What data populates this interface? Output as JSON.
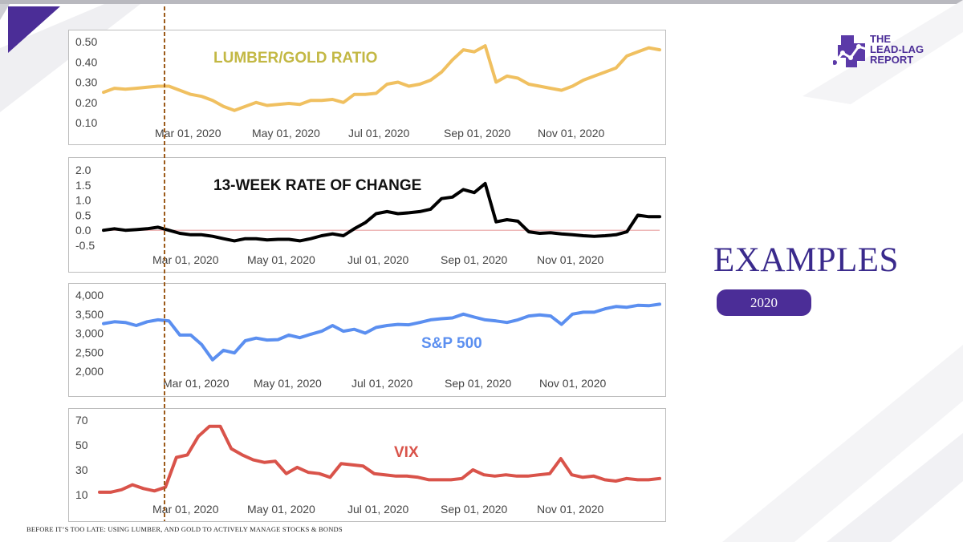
{
  "slide": {
    "heading": "EXAMPLES",
    "year_badge": "2020",
    "footer": "BEFORE IT’S TOO LATE: USING LUMBER, AND GOLD TO ACTIVELY MANAGE STOCKS & BONDS",
    "logo": {
      "line1": "THE",
      "line2": "LEAD-LAG",
      "line3": "REPORT"
    },
    "colors": {
      "accent": "#4b2d97",
      "lumber": "#f0c060",
      "roc": "#000000",
      "spx": "#5b8ff0",
      "vix": "#d9534a",
      "marker": "#9c5a1a"
    }
  },
  "chart_data": [
    {
      "type": "line",
      "title": "LUMBER/GOLD RATIO",
      "title_color": "#c3b844",
      "x_labels": [
        "Mar 01, 2020",
        "May 01, 2020",
        "Jul 01, 2020",
        "Sep 01, 2020",
        "Nov 01, 2020"
      ],
      "y_ticks": [
        "0.50",
        "0.40",
        "0.30",
        "0.20",
        "0.10"
      ],
      "ylim": [
        0.1,
        0.5
      ],
      "series": [
        {
          "color": "#f0c060",
          "values": [
            0.25,
            0.27,
            0.265,
            0.27,
            0.275,
            0.28,
            0.28,
            0.26,
            0.24,
            0.23,
            0.21,
            0.18,
            0.16,
            0.18,
            0.2,
            0.185,
            0.19,
            0.195,
            0.19,
            0.21,
            0.21,
            0.215,
            0.2,
            0.24,
            0.24,
            0.245,
            0.29,
            0.3,
            0.28,
            0.29,
            0.31,
            0.35,
            0.41,
            0.46,
            0.45,
            0.48,
            0.3,
            0.33,
            0.32,
            0.29,
            0.28,
            0.27,
            0.26,
            0.28,
            0.31,
            0.33,
            0.35,
            0.37,
            0.43,
            0.45,
            0.47,
            0.46
          ]
        }
      ]
    },
    {
      "type": "line",
      "title": "13-WEEK RATE OF CHANGE",
      "title_color": "#111111",
      "x_labels": [
        "Mar 01, 2020",
        "May 01, 2020",
        "Jul 01, 2020",
        "Sep 01, 2020",
        "Nov 01, 2020"
      ],
      "y_ticks": [
        "2.0",
        "1.5",
        "1.0",
        "0.5",
        "0.0",
        "-0.5"
      ],
      "ylim": [
        -0.5,
        2.0
      ],
      "zero_line": true,
      "series": [
        {
          "color": "#000000",
          "values": [
            0.0,
            0.05,
            0.0,
            0.02,
            0.05,
            0.1,
            0.0,
            -0.1,
            -0.15,
            -0.15,
            -0.2,
            -0.28,
            -0.35,
            -0.28,
            -0.28,
            -0.32,
            -0.3,
            -0.3,
            -0.35,
            -0.28,
            -0.18,
            -0.12,
            -0.18,
            0.05,
            0.25,
            0.55,
            0.62,
            0.55,
            0.58,
            0.62,
            0.7,
            1.05,
            1.1,
            1.35,
            1.25,
            1.55,
            0.28,
            0.35,
            0.3,
            -0.05,
            -0.1,
            -0.08,
            -0.12,
            -0.15,
            -0.18,
            -0.2,
            -0.18,
            -0.15,
            -0.05,
            0.5,
            0.45,
            0.45
          ]
        }
      ]
    },
    {
      "type": "line",
      "title": "S&P 500",
      "title_color": "#5b8ff0",
      "x_labels": [
        "Mar 01, 2020",
        "May 01, 2020",
        "Jul 01, 2020",
        "Sep 01, 2020",
        "Nov 01, 2020"
      ],
      "y_ticks": [
        "4,000",
        "3,500",
        "3,000",
        "2,500",
        "2,000"
      ],
      "ylim": [
        2000,
        4000
      ],
      "series": [
        {
          "color": "#5b8ff0",
          "values": [
            3250,
            3300,
            3280,
            3200,
            3300,
            3350,
            3320,
            2950,
            2950,
            2700,
            2300,
            2550,
            2480,
            2800,
            2870,
            2820,
            2830,
            2950,
            2880,
            2970,
            3050,
            3200,
            3050,
            3100,
            3000,
            3150,
            3200,
            3230,
            3220,
            3280,
            3350,
            3380,
            3400,
            3500,
            3420,
            3350,
            3320,
            3280,
            3350,
            3450,
            3480,
            3450,
            3230,
            3500,
            3550,
            3550,
            3640,
            3700,
            3680,
            3730,
            3720,
            3760
          ]
        }
      ]
    },
    {
      "type": "line",
      "title": "VIX",
      "title_color": "#d9534a",
      "x_labels": [
        "Mar 01, 2020",
        "May 01, 2020",
        "Jul 01, 2020",
        "Sep 01, 2020",
        "Nov 01, 2020"
      ],
      "y_ticks": [
        "70",
        "50",
        "30",
        "10"
      ],
      "ylim": [
        10,
        70
      ],
      "series": [
        {
          "color": "#d9534a",
          "values": [
            12,
            12,
            14,
            18,
            15,
            13,
            16,
            40,
            42,
            57,
            65,
            65,
            47,
            42,
            38,
            36,
            37,
            27,
            32,
            28,
            27,
            24,
            35,
            34,
            33,
            27,
            26,
            25,
            25,
            24,
            22,
            22,
            22,
            23,
            30,
            26,
            25,
            26,
            25,
            25,
            26,
            27,
            39,
            26,
            24,
            25,
            22,
            21,
            23,
            22,
            22,
            23
          ]
        }
      ]
    }
  ]
}
